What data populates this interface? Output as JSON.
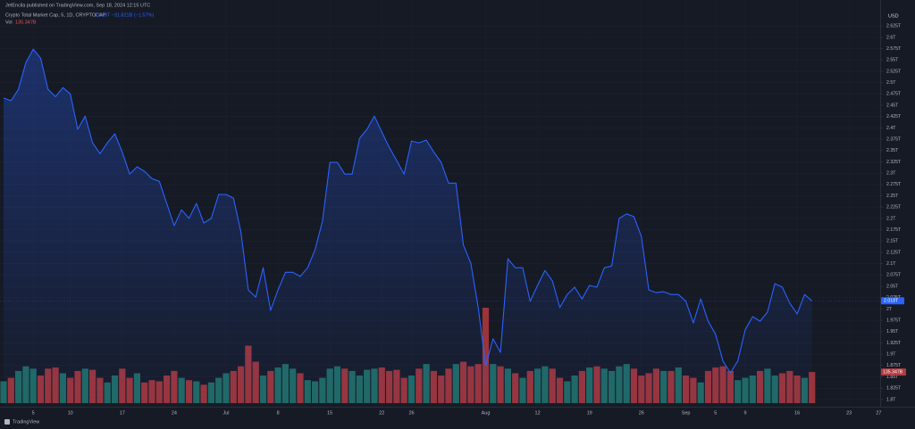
{
  "chart_data": {
    "type": "area",
    "publisher": "JetEncila published on TradingView.com, Sep 18, 2024 12:15 UTC",
    "title": "Crypto Total Market Cap, 5, 1D, CRYPTOCAP",
    "quote": "2.018T −31.821B (−1.57%)",
    "unit": "USD",
    "brand": "TradingView",
    "grid": true,
    "ylim": [
      1.786,
      2.651
    ],
    "yticks": [
      {
        "value": 1.8,
        "label": "1.8T"
      },
      {
        "value": 1.825,
        "label": "1.825T"
      },
      {
        "value": 1.85,
        "label": "1.85T"
      },
      {
        "value": 1.875,
        "label": "1.875T"
      },
      {
        "value": 1.9,
        "label": "1.9T"
      },
      {
        "value": 1.925,
        "label": "1.925T"
      },
      {
        "value": 1.95,
        "label": "1.95T"
      },
      {
        "value": 1.975,
        "label": "1.975T"
      },
      {
        "value": 2,
        "label": "2T"
      },
      {
        "value": 2.025,
        "label": "2.025T"
      },
      {
        "value": 2.05,
        "label": "2.05T"
      },
      {
        "value": 2.075,
        "label": "2.075T"
      },
      {
        "value": 2.1,
        "label": "2.1T"
      },
      {
        "value": 2.125,
        "label": "2.125T"
      },
      {
        "value": 2.15,
        "label": "2.15T"
      },
      {
        "value": 2.175,
        "label": "2.175T"
      },
      {
        "value": 2.2,
        "label": "2.2T"
      },
      {
        "value": 2.225,
        "label": "2.225T"
      },
      {
        "value": 2.25,
        "label": "2.25T"
      },
      {
        "value": 2.275,
        "label": "2.275T"
      },
      {
        "value": 2.3,
        "label": "2.3T"
      },
      {
        "value": 2.325,
        "label": "2.325T"
      },
      {
        "value": 2.35,
        "label": "2.35T"
      },
      {
        "value": 2.375,
        "label": "2.375T"
      },
      {
        "value": 2.4,
        "label": "2.4T"
      },
      {
        "value": 2.425,
        "label": "2.425T"
      },
      {
        "value": 2.45,
        "label": "2.45T"
      },
      {
        "value": 2.475,
        "label": "2.475T"
      },
      {
        "value": 2.5,
        "label": "2.5T"
      },
      {
        "value": 2.525,
        "label": "2.525T"
      },
      {
        "value": 2.55,
        "label": "2.55T"
      },
      {
        "value": 2.575,
        "label": "2.575T"
      },
      {
        "value": 2.6,
        "label": "2.6T"
      },
      {
        "value": 2.625,
        "label": "2.625T"
      }
    ],
    "categories": [
      null,
      null,
      null,
      null,
      "5",
      null,
      null,
      null,
      null,
      "10",
      null,
      null,
      null,
      null,
      null,
      null,
      "17",
      null,
      null,
      null,
      null,
      null,
      null,
      "24",
      null,
      null,
      null,
      null,
      null,
      null,
      "Jul",
      null,
      null,
      null,
      null,
      null,
      null,
      "8",
      null,
      null,
      null,
      null,
      null,
      null,
      "15",
      null,
      null,
      null,
      null,
      null,
      null,
      "22",
      null,
      null,
      null,
      "26",
      null,
      null,
      null,
      null,
      null,
      null,
      null,
      null,
      null,
      "Aug",
      null,
      null,
      null,
      null,
      null,
      null,
      "12",
      null,
      null,
      null,
      null,
      null,
      null,
      "19",
      null,
      null,
      null,
      null,
      null,
      null,
      "26",
      null,
      null,
      null,
      null,
      null,
      "Sep",
      null,
      null,
      null,
      "5",
      null,
      null,
      null,
      "9",
      null,
      null,
      null,
      null,
      null,
      null,
      "16",
      null,
      null,
      null,
      null,
      null,
      null,
      "23",
      null,
      null,
      null,
      "27"
    ],
    "series": [
      {
        "color": "#2962ff",
        "last_label": "2.018T",
        "values": [
          2.466,
          2.46,
          2.485,
          2.544,
          2.574,
          2.554,
          2.485,
          2.469,
          2.489,
          2.475,
          2.397,
          2.426,
          2.367,
          2.343,
          2.367,
          2.387,
          2.347,
          2.298,
          2.314,
          2.304,
          2.288,
          2.282,
          2.233,
          2.184,
          2.219,
          2.2,
          2.233,
          2.19,
          2.2,
          2.253,
          2.253,
          2.245,
          2.17,
          2.042,
          2.026,
          2.091,
          1.997,
          2.042,
          2.081,
          2.081,
          2.072,
          2.091,
          2.131,
          2.194,
          2.324,
          2.324,
          2.298,
          2.298,
          2.377,
          2.397,
          2.426,
          2.391,
          2.357,
          2.328,
          2.298,
          2.371,
          2.367,
          2.373,
          2.347,
          2.324,
          2.278,
          2.278,
          2.141,
          2.101,
          2.003,
          1.875,
          1.934,
          1.904,
          2.111,
          2.091,
          2.091,
          2.017,
          2.052,
          2.085,
          2.062,
          2.003,
          2.032,
          2.048,
          2.022,
          2.052,
          2.048,
          2.091,
          2.095,
          2.2,
          2.21,
          2.204,
          2.16,
          2.042,
          2.036,
          2.038,
          2.032,
          2.032,
          2.017,
          1.969,
          2.022,
          1.973,
          1.944,
          1.885,
          1.859,
          1.885,
          1.954,
          1.983,
          1.973,
          1.993,
          2.056,
          2.048,
          2.013,
          1.989,
          2.032,
          2.018,
          null,
          null,
          null,
          null,
          null,
          null,
          null,
          null,
          null
        ]
      }
    ],
    "volume": {
      "name": "Vol",
      "last_label": "135.347B",
      "up_color": "#22786e",
      "down_color": "#b13a3e",
      "values": [
        95,
        110,
        140,
        160,
        150,
        120,
        150,
        155,
        130,
        110,
        140,
        150,
        145,
        110,
        90,
        120,
        150,
        110,
        130,
        90,
        100,
        95,
        120,
        140,
        110,
        100,
        95,
        80,
        90,
        110,
        130,
        140,
        160,
        250,
        180,
        120,
        140,
        155,
        170,
        150,
        130,
        100,
        95,
        110,
        150,
        160,
        150,
        140,
        120,
        145,
        150,
        155,
        140,
        145,
        110,
        120,
        150,
        170,
        140,
        120,
        150,
        170,
        180,
        160,
        170,
        415,
        170,
        160,
        150,
        130,
        110,
        140,
        150,
        160,
        150,
        110,
        95,
        120,
        140,
        155,
        160,
        150,
        140,
        160,
        170,
        150,
        120,
        130,
        150,
        140,
        140,
        155,
        120,
        110,
        90,
        140,
        155,
        160,
        140,
        100,
        110,
        120,
        140,
        150,
        120,
        130,
        140,
        120,
        110,
        135.347,
        null,
        null,
        null,
        null,
        null,
        null,
        null,
        null,
        null
      ]
    }
  }
}
